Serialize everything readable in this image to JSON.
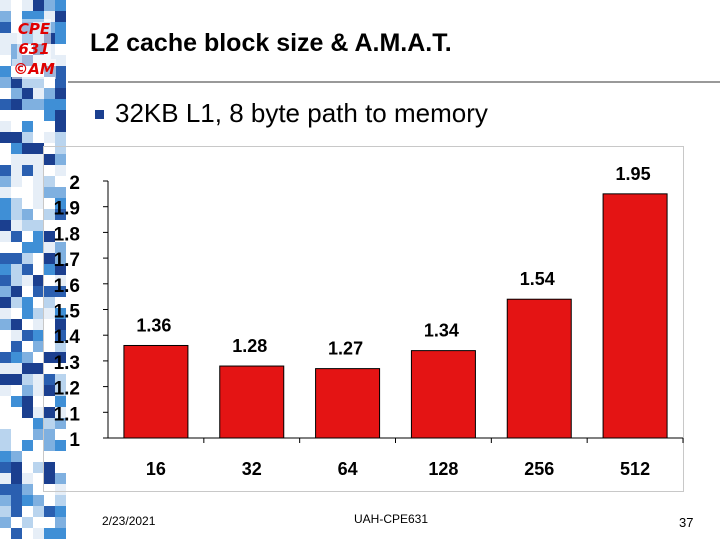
{
  "logo": {
    "lines": [
      "CPE",
      "631",
      "©AM"
    ]
  },
  "slide": {
    "title": "L2 cache block size & A.M.A.T.",
    "bullet": "32KB L1, 8 byte path to memory"
  },
  "footer": {
    "date": "2/23/2021",
    "center": "UAH-CPE631",
    "page": "37"
  },
  "colors": {
    "bar": "#e41414",
    "bar_edge": "#000000",
    "bullet": "#1b3f8f",
    "logo": "#e00000"
  },
  "chart_data": {
    "type": "bar",
    "categories": [
      "16",
      "32",
      "64",
      "128",
      "256",
      "512"
    ],
    "values": [
      1.36,
      1.28,
      1.27,
      1.34,
      1.54,
      1.95
    ],
    "value_labels": [
      "1.36",
      "1.28",
      "1.27",
      "1.34",
      "1.54",
      "1.95"
    ],
    "yticks": [
      "1",
      "1.1",
      "1.2",
      "1.3",
      "1.4",
      "1.5",
      "1.6",
      "1.7",
      "1.8",
      "1.9",
      "2"
    ],
    "ylim": [
      1,
      2
    ],
    "title": "",
    "xlabel": "",
    "ylabel": "",
    "grid": false,
    "legend": "none"
  }
}
